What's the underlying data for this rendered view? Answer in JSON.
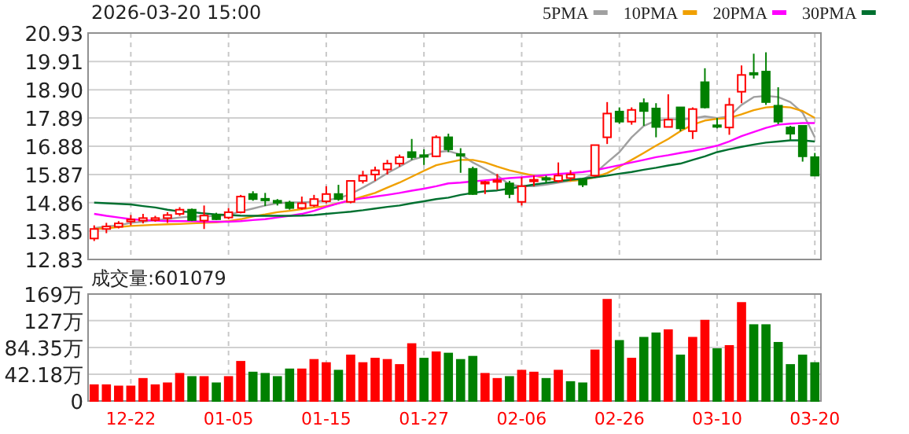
{
  "chart_data": [
    {
      "type": "candlestick",
      "title": "2026-03-20 15:00",
      "categories": [
        null,
        null,
        null,
        null,
        null,
        null,
        null,
        null,
        null,
        null,
        null,
        null,
        null,
        null,
        null,
        null,
        null,
        null,
        null,
        null,
        null,
        null,
        null,
        null,
        null,
        null,
        null,
        null,
        null,
        null,
        null,
        null,
        null,
        null,
        null,
        null,
        null,
        null,
        null,
        null,
        null,
        null,
        null,
        null,
        null,
        null,
        null,
        null,
        null,
        null,
        null,
        null,
        null,
        null,
        null,
        null,
        null,
        null,
        null,
        null
      ],
      "ohlc": [
        [
          13.58,
          14.05,
          13.49,
          13.92
        ],
        [
          13.92,
          14.14,
          13.77,
          14.01
        ],
        [
          14.0,
          14.2,
          13.94,
          14.12
        ],
        [
          14.19,
          14.42,
          14.05,
          14.26
        ],
        [
          14.22,
          14.46,
          14.12,
          14.31
        ],
        [
          14.24,
          14.39,
          14.18,
          14.31
        ],
        [
          14.31,
          14.52,
          14.14,
          14.42
        ],
        [
          14.46,
          14.7,
          14.39,
          14.61
        ],
        [
          14.61,
          14.65,
          14.2,
          14.24
        ],
        [
          14.22,
          14.76,
          13.92,
          14.4
        ],
        [
          14.42,
          14.5,
          14.24,
          14.27
        ],
        [
          14.33,
          14.67,
          14.27,
          14.52
        ],
        [
          14.52,
          15.14,
          14.48,
          15.08
        ],
        [
          15.17,
          15.27,
          14.93,
          14.99
        ],
        [
          15.0,
          15.21,
          14.74,
          14.97
        ],
        [
          14.93,
          14.99,
          14.76,
          14.86
        ],
        [
          14.86,
          14.93,
          14.61,
          14.67
        ],
        [
          14.67,
          15.08,
          14.61,
          14.84
        ],
        [
          14.76,
          15.14,
          14.71,
          14.99
        ],
        [
          14.91,
          15.45,
          14.84,
          15.17
        ],
        [
          15.17,
          15.5,
          14.93,
          14.99
        ],
        [
          14.89,
          15.64,
          14.84,
          15.64
        ],
        [
          15.64,
          16.0,
          15.55,
          15.83
        ],
        [
          15.87,
          16.15,
          15.64,
          16.02
        ],
        [
          16.05,
          16.39,
          15.87,
          16.26
        ],
        [
          16.26,
          16.58,
          16.15,
          16.49
        ],
        [
          16.67,
          17.14,
          16.39,
          16.49
        ],
        [
          16.56,
          16.77,
          16.21,
          16.54
        ],
        [
          16.52,
          17.27,
          16.49,
          17.2
        ],
        [
          17.2,
          17.33,
          16.67,
          16.77
        ],
        [
          16.6,
          16.81,
          15.93,
          16.56
        ],
        [
          16.07,
          16.15,
          15.14,
          15.17
        ],
        [
          15.58,
          15.64,
          15.17,
          15.6
        ],
        [
          15.62,
          15.89,
          15.32,
          15.66
        ],
        [
          15.55,
          15.64,
          15.02,
          15.17
        ],
        [
          14.89,
          15.77,
          14.76,
          15.45
        ],
        [
          15.66,
          15.83,
          15.45,
          15.68
        ],
        [
          15.74,
          15.83,
          15.55,
          15.7
        ],
        [
          15.64,
          16.3,
          15.58,
          15.83
        ],
        [
          15.74,
          16.02,
          15.64,
          15.87
        ],
        [
          15.68,
          15.74,
          15.42,
          15.51
        ],
        [
          15.83,
          16.92,
          15.79,
          16.92
        ],
        [
          17.2,
          18.46,
          16.96,
          18.05
        ],
        [
          18.12,
          18.27,
          17.68,
          17.76
        ],
        [
          17.76,
          18.27,
          17.65,
          18.18
        ],
        [
          18.42,
          18.59,
          17.61,
          18.14
        ],
        [
          18.23,
          18.42,
          17.2,
          17.57
        ],
        [
          17.57,
          18.74,
          17.57,
          17.83
        ],
        [
          18.27,
          18.27,
          17.42,
          17.52
        ],
        [
          17.42,
          18.27,
          17.14,
          18.21
        ],
        [
          19.17,
          19.67,
          18.23,
          18.27
        ],
        [
          17.63,
          17.89,
          17.52,
          17.61
        ],
        [
          17.55,
          18.61,
          17.29,
          18.36
        ],
        [
          18.83,
          19.77,
          18.42,
          19.43
        ],
        [
          19.5,
          20.19,
          19.3,
          19.48
        ],
        [
          19.55,
          20.24,
          18.36,
          18.46
        ],
        [
          18.33,
          18.99,
          17.67,
          17.76
        ],
        [
          17.55,
          17.61,
          17.1,
          17.33
        ],
        [
          17.61,
          17.61,
          16.33,
          16.52
        ],
        [
          16.49,
          16.64,
          15.83,
          15.83
        ]
      ],
      "series": [
        {
          "name": "5PMA",
          "type": "line",
          "color": "#a0a0a0",
          "values": [
            13.95,
            14.01,
            14.05,
            14.14,
            14.18,
            14.24,
            14.27,
            14.33,
            14.37,
            14.37,
            14.39,
            14.42,
            14.55,
            14.65,
            14.76,
            14.84,
            14.87,
            14.87,
            14.89,
            14.95,
            15.02,
            15.17,
            15.4,
            15.64,
            15.92,
            16.15,
            16.39,
            16.52,
            16.67,
            16.71,
            16.58,
            16.3,
            16.07,
            15.83,
            15.51,
            15.45,
            15.45,
            15.51,
            15.58,
            15.64,
            15.7,
            15.92,
            16.3,
            16.67,
            17.2,
            17.61,
            17.8,
            17.84,
            17.84,
            17.87,
            17.95,
            17.89,
            17.95,
            18.36,
            18.64,
            18.68,
            18.64,
            18.46,
            18.08,
            17.2
          ]
        },
        {
          "name": "10PMA",
          "type": "line",
          "color": "#f0a000",
          "values": [
            13.92,
            13.95,
            13.99,
            14.03,
            14.05,
            14.07,
            14.09,
            14.1,
            14.12,
            14.14,
            14.16,
            14.2,
            14.27,
            14.37,
            14.44,
            14.52,
            14.57,
            14.63,
            14.69,
            14.74,
            14.84,
            14.95,
            15.08,
            15.21,
            15.4,
            15.58,
            15.79,
            16.0,
            16.2,
            16.3,
            16.39,
            16.39,
            16.3,
            16.15,
            16.02,
            15.92,
            15.83,
            15.74,
            15.68,
            15.64,
            15.68,
            15.77,
            15.92,
            16.15,
            16.39,
            16.64,
            16.9,
            17.14,
            17.42,
            17.65,
            17.8,
            17.86,
            17.89,
            18.02,
            18.17,
            18.27,
            18.3,
            18.27,
            18.14,
            17.89
          ]
        },
        {
          "name": "20PMA",
          "type": "line",
          "color": "#ff00ff",
          "values": [
            14.46,
            14.39,
            14.33,
            14.27,
            14.24,
            14.22,
            14.2,
            14.2,
            14.2,
            14.18,
            14.18,
            14.18,
            14.2,
            14.24,
            14.27,
            14.33,
            14.39,
            14.46,
            14.57,
            14.71,
            14.84,
            14.95,
            15.02,
            15.08,
            15.14,
            15.21,
            15.29,
            15.36,
            15.45,
            15.55,
            15.58,
            15.62,
            15.66,
            15.7,
            15.74,
            15.77,
            15.81,
            15.85,
            15.89,
            15.92,
            15.96,
            16.02,
            16.11,
            16.2,
            16.3,
            16.39,
            16.49,
            16.56,
            16.64,
            16.71,
            16.8,
            16.9,
            17.05,
            17.24,
            17.39,
            17.54,
            17.65,
            17.69,
            17.71,
            17.71
          ]
        },
        {
          "name": "30PMA",
          "type": "line",
          "color": "#007030",
          "values": [
            14.86,
            14.84,
            14.82,
            14.8,
            14.74,
            14.69,
            14.61,
            14.55,
            14.52,
            14.48,
            14.44,
            14.42,
            14.4,
            14.39,
            14.39,
            14.39,
            14.39,
            14.4,
            14.42,
            14.46,
            14.5,
            14.54,
            14.59,
            14.65,
            14.71,
            14.76,
            14.84,
            14.91,
            14.99,
            15.04,
            15.14,
            15.21,
            15.27,
            15.3,
            15.36,
            15.44,
            15.51,
            15.57,
            15.62,
            15.68,
            15.72,
            15.77,
            15.83,
            15.9,
            15.96,
            16.04,
            16.11,
            16.19,
            16.26,
            16.39,
            16.52,
            16.67,
            16.77,
            16.86,
            16.94,
            17.01,
            17.05,
            17.09,
            17.09,
            17.05
          ]
        }
      ],
      "ylim": [
        12.83,
        20.93
      ],
      "yticks": [
        12.83,
        13.85,
        14.86,
        15.87,
        16.88,
        17.89,
        {
          "value": 18.9,
          "label": "18.90"
        },
        19.91,
        20.93
      ],
      "grid": true,
      "legend": "top right",
      "tick_labels": "y"
    },
    {
      "type": "bar",
      "title": "成交量:601079",
      "categories": [
        null,
        null,
        null,
        "12-22",
        null,
        null,
        null,
        null,
        null,
        null,
        null,
        "01-05",
        null,
        null,
        null,
        null,
        null,
        null,
        null,
        "01-15",
        null,
        null,
        null,
        null,
        null,
        null,
        null,
        "01-27",
        null,
        null,
        null,
        null,
        null,
        null,
        null,
        "02-06",
        null,
        null,
        null,
        null,
        null,
        null,
        null,
        "02-26",
        null,
        null,
        null,
        null,
        null,
        null,
        null,
        "03-10",
        null,
        null,
        null,
        null,
        null,
        null,
        null,
        "03-20"
      ],
      "values": [
        25,
        25,
        23,
        23,
        35,
        25,
        28,
        43,
        38,
        38,
        28,
        38,
        62,
        45,
        43,
        38,
        50,
        50,
        65,
        60,
        48,
        72,
        60,
        67,
        65,
        57,
        90,
        67,
        77,
        75,
        65,
        70,
        43,
        35,
        38,
        48,
        45,
        35,
        48,
        30,
        28,
        80,
        160,
        95,
        67,
        100,
        107,
        112,
        72,
        100,
        127,
        82,
        87,
        155,
        120,
        120,
        92,
        57,
        72,
        60
      ],
      "colors": [
        "#ff0000",
        "#ff0000",
        "#ff0000",
        "#ff0000",
        "#ff0000",
        "#ff0000",
        "#ff0000",
        "#ff0000",
        "#008000",
        "#ff0000",
        "#008000",
        "#ff0000",
        "#ff0000",
        "#008000",
        "#008000",
        "#008000",
        "#008000",
        "#ff0000",
        "#ff0000",
        "#ff0000",
        "#008000",
        "#ff0000",
        "#ff0000",
        "#ff0000",
        "#ff0000",
        "#ff0000",
        "#ff0000",
        "#008000",
        "#ff0000",
        "#008000",
        "#008000",
        "#008000",
        "#ff0000",
        "#ff0000",
        "#008000",
        "#ff0000",
        "#ff0000",
        "#008000",
        "#ff0000",
        "#008000",
        "#008000",
        "#ff0000",
        "#ff0000",
        "#008000",
        "#ff0000",
        "#008000",
        "#008000",
        "#ff0000",
        "#008000",
        "#ff0000",
        "#ff0000",
        "#008000",
        "#ff0000",
        "#ff0000",
        "#008000",
        "#008000",
        "#008000",
        "#008000",
        "#008000",
        "#008000"
      ],
      "ylim": [
        0,
        169
      ],
      "yticks": [
        0,
        {
          "value": 42.18,
          "label": "42.18万"
        },
        {
          "value": 84.35,
          "label": "84.35万"
        },
        {
          "value": 127,
          "label": "127万"
        },
        {
          "value": 169,
          "label": "169万"
        }
      ],
      "grid": true
    }
  ]
}
